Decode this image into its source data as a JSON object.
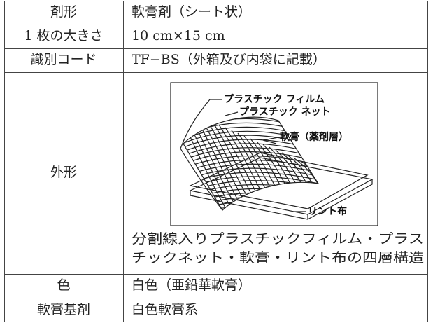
{
  "table": {
    "rows": [
      [
        "剤形",
        "軟膏剤（シート状）"
      ],
      [
        "1 枚の大きさ",
        "10 cm×15 cm"
      ],
      [
        "識別コード",
        "TF−BS（外箱及び内袋に記載）"
      ],
      [
        "外形",
        {
          "diagram_labels": [
            "プラスチック フィルム",
            "プラスチック ネット",
            "軟膏（薬剤層）",
            "リント布"
          ],
          "caption": [
            "分割線入りプラスチックフィルム・プラス",
            "チックネット・軟膏・リント布の四層構造"
          ]
        }
      ],
      [
        "色",
        "白色（亜鉛華軟膏）"
      ],
      [
        "軟膏基剤",
        "白色軟膏系"
      ]
    ]
  }
}
